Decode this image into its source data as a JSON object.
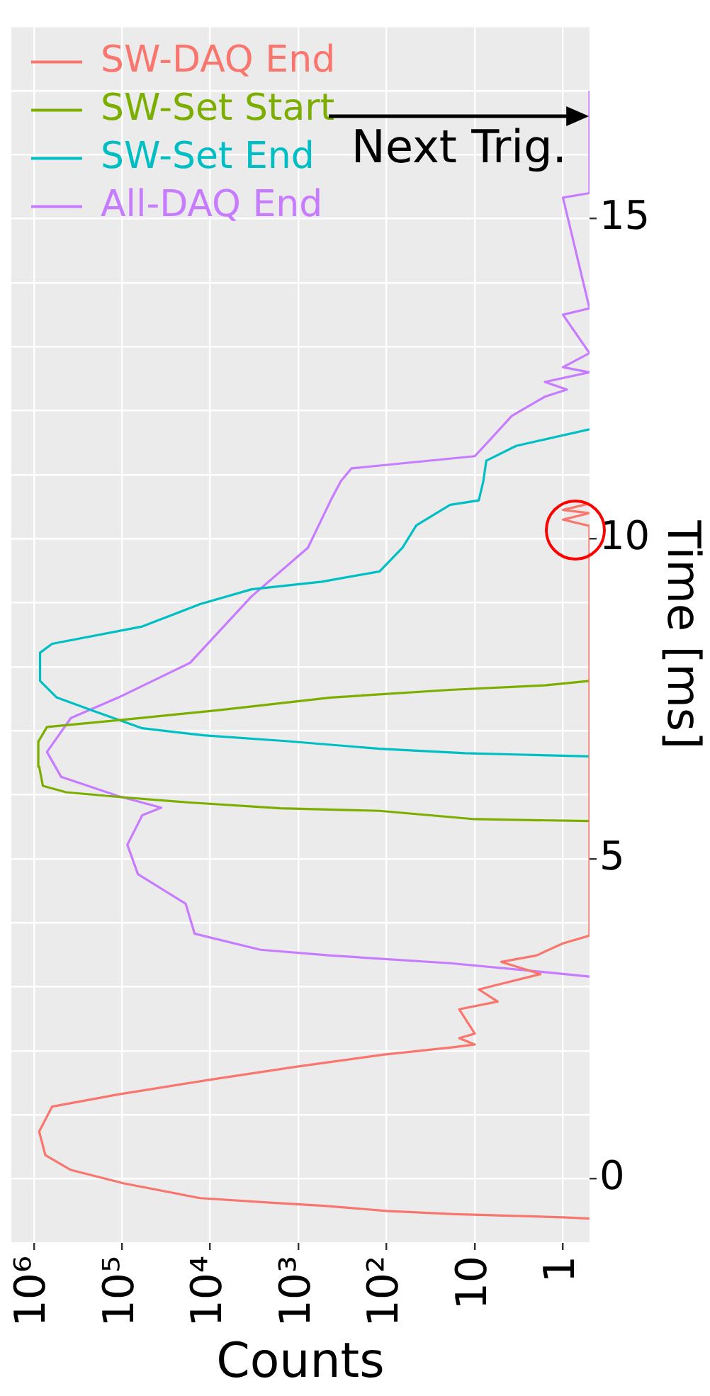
{
  "chart_data": {
    "type": "line",
    "xlabel": "Counts",
    "ylabel": "Time [ms]",
    "log": "x",
    "grid": true,
    "legend": "top left",
    "marker": "none",
    "line_style": "solid",
    "xlim": [
      1800000,
      0.5
    ],
    "ylim": [
      -1,
      18
    ],
    "xticks": [
      1,
      10,
      {
        "value": 100,
        "label": "10²"
      },
      {
        "value": 1000,
        "label": "10³"
      },
      {
        "value": 10000,
        "label": "10⁴"
      },
      {
        "value": 100000,
        "label": "10⁵"
      },
      {
        "value": 1000000,
        "label": "10⁶"
      }
    ],
    "yticks": [
      {
        "value": -1,
        "label": null
      },
      0,
      {
        "value": 1,
        "label": null
      },
      {
        "value": 2,
        "label": null
      },
      {
        "value": 3,
        "label": null
      },
      {
        "value": 4,
        "label": null
      },
      5,
      {
        "value": 6,
        "label": null
      },
      {
        "value": 7,
        "label": null
      },
      {
        "value": 8,
        "label": null
      },
      {
        "value": 9,
        "label": null
      },
      10,
      {
        "value": 11,
        "label": null
      },
      {
        "value": 12,
        "label": null
      },
      {
        "value": 13,
        "label": null
      },
      {
        "value": 14,
        "label": null
      },
      15,
      {
        "value": 16,
        "label": null
      },
      {
        "value": 17,
        "label": null
      },
      {
        "value": 18,
        "label": null
      }
    ],
    "annotations": [
      "Next Trig."
    ],
    "series": [
      {
        "name": "SW-DAQ End",
        "color": "#f8766d",
        "values": [
          -0.62,
          -0.6,
          -0.55,
          -0.5,
          -0.42,
          -0.37,
          -0.3,
          -0.07,
          0.14,
          0.37,
          0.74,
          1.13,
          1.32,
          1.55,
          1.75,
          1.94,
          2.06,
          2.1,
          2.2,
          2.27,
          2.65,
          2.77,
          2.96,
          3.2,
          3.39,
          3.49,
          3.68,
          3.8,
          10.2,
          10.3,
          10.4,
          10.45,
          10.55
        ],
        "x": [
          0.5,
          1,
          17,
          100,
          510,
          2100,
          13000,
          95000,
          380000,
          740000,
          870000,
          620000,
          110000,
          10000,
          1100,
          110,
          17,
          10,
          15,
          10,
          15,
          5.5,
          9,
          1.8,
          5,
          2,
          1,
          0.5,
          0.5,
          1,
          0.5,
          1,
          0.5
        ]
      },
      {
        "name": "SW-Set Start",
        "color": "#7cae00",
        "values": [
          5.59,
          5.62,
          5.75,
          5.79,
          5.88,
          5.96,
          6.04,
          6.14,
          6.44,
          6.83,
          7.06,
          7.18,
          7.32,
          7.52,
          7.64,
          7.71,
          7.78
        ],
        "x": [
          0.5,
          10,
          120,
          1600,
          17000,
          95000,
          430000,
          790000,
          870000,
          890000,
          710000,
          87000,
          8300,
          430,
          19,
          1.6,
          0.5
        ]
      },
      {
        "name": "SW-Set End",
        "color": "#00bfc4",
        "values": [
          6.6,
          6.63,
          6.65,
          6.72,
          6.84,
          6.93,
          7.04,
          7.3,
          7.52,
          7.78,
          8.22,
          8.36,
          8.63,
          8.98,
          9.21,
          9.33,
          9.49,
          9.86,
          10.21,
          10.53,
          10.6,
          10.9,
          11.22,
          11.45,
          11.71
        ],
        "x": [
          0.5,
          3.4,
          13,
          120,
          1400,
          12000,
          59000,
          200000,
          550000,
          850000,
          850000,
          620000,
          59000,
          13000,
          3400,
          540,
          120,
          66,
          46,
          19,
          9,
          8,
          7.4,
          3.4,
          0.5
        ]
      },
      {
        "name": "All-DAQ End",
        "color": "#c77cff",
        "values": [
          3.16,
          3.23,
          3.37,
          3.49,
          3.58,
          3.83,
          4.3,
          4.76,
          5.22,
          5.68,
          5.8,
          5.98,
          6.28,
          6.67,
          7.2,
          7.52,
          8.06,
          9.1,
          9.86,
          10.6,
          10.9,
          11.1,
          11.29,
          11.52,
          11.92,
          12.22,
          12.33,
          12.45,
          12.6,
          12.68,
          12.9,
          13.5,
          13.6,
          15.33,
          15.4,
          17
        ],
        "x": [
          0.5,
          1.6,
          19,
          430,
          2700,
          15000,
          19000,
          66000,
          87000,
          59000,
          36000,
          110000,
          490000,
          710000,
          380000,
          110000,
          17000,
          3400,
          780,
          430,
          330,
          250,
          10,
          7,
          3.8,
          1.6,
          0.9,
          1.6,
          0.5,
          1,
          0.5,
          1,
          0.5,
          1,
          0.5,
          0.5
        ]
      }
    ]
  }
}
